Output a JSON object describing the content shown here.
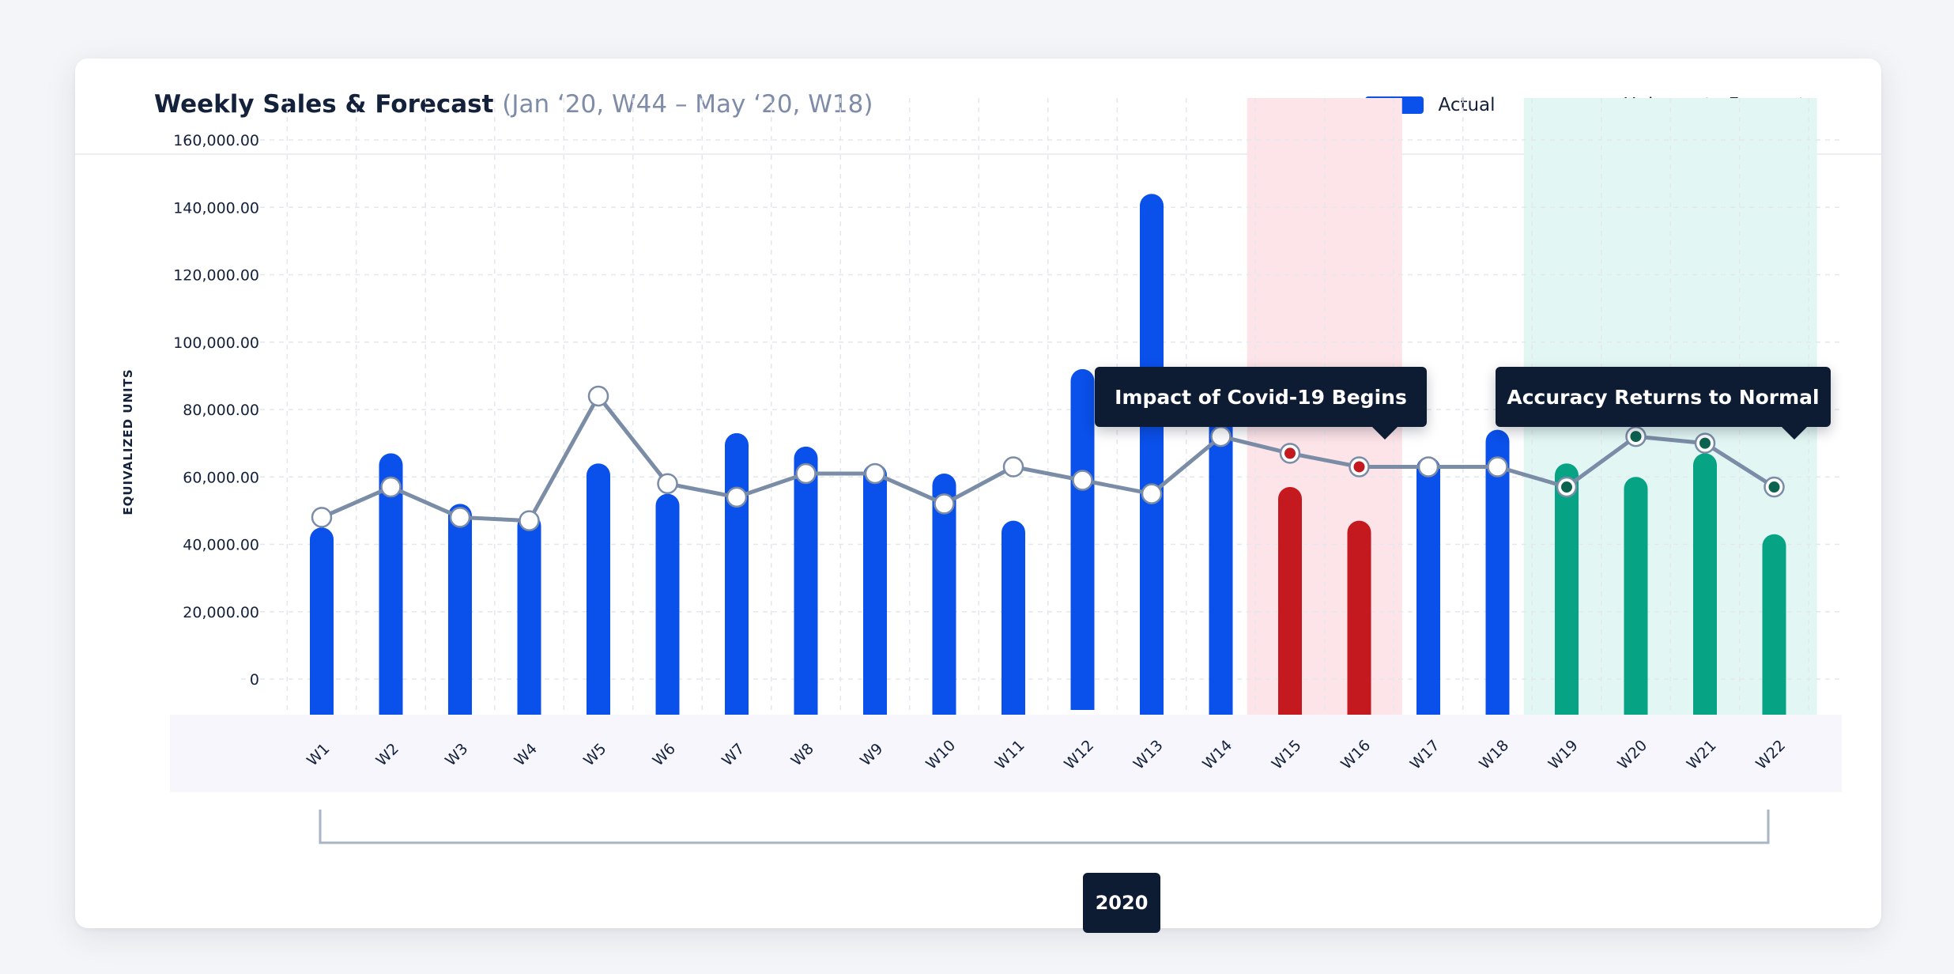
{
  "header": {
    "title": "Weekly Sales & Forecast",
    "subtitle": "(Jan ‘20, W44 – May ‘20, W18)"
  },
  "legend": {
    "actual": "Actual",
    "forecast": "Unioncrate Forecast"
  },
  "callouts": {
    "covid": "Impact of Covid-19 Begins",
    "normal": "Accuracy Returns to Normal"
  },
  "year_label": "2020",
  "colors": {
    "actual": "#0a50ea",
    "covid": "#c4191f",
    "normal": "#07a385",
    "forecast_line": "#7a8ca6",
    "covid_band": "#fde4e8",
    "normal_band": "#e2f7f4"
  },
  "chart_data": {
    "type": "bar",
    "categories": [
      "W1",
      "W2",
      "W3",
      "W4",
      "W5",
      "W6",
      "W7",
      "W8",
      "W9",
      "W10",
      "W11",
      "W12",
      "W13",
      "W14",
      "W15",
      "W16",
      "W17",
      "W18",
      "W19",
      "W20",
      "W21",
      "W22"
    ],
    "ylabel": "EQUIVALIZED UNITS",
    "ylim": [
      0,
      160000
    ],
    "yticks": [
      "0",
      "20,000.00",
      "40,000.00",
      "60,000.00",
      "80,000.00",
      "100,000.00",
      "120,000.00",
      "140,000.00",
      "160,000.00"
    ],
    "grid": true,
    "legend_position": "top-right",
    "highlight_ranges": [
      {
        "label": "Impact of Covid-19 Begins",
        "from": "W15",
        "to": "W16"
      },
      {
        "label": "Accuracy Returns to Normal",
        "from": "W19",
        "to": "W22"
      }
    ],
    "series": [
      {
        "name": "Actual",
        "type": "bar",
        "values": [
          45000,
          67000,
          52000,
          49000,
          64000,
          55000,
          73000,
          69000,
          64000,
          61000,
          47000,
          92000,
          144000,
          80000,
          57000,
          47000,
          66000,
          74000,
          64000,
          60000,
          67000,
          43000
        ]
      },
      {
        "name": "Unioncrate Forecast",
        "type": "line",
        "values": [
          48000,
          57000,
          48000,
          47000,
          84000,
          58000,
          54000,
          61000,
          61000,
          52000,
          63000,
          59000,
          55000,
          72000,
          67000,
          63000,
          63000,
          63000,
          57000,
          72000,
          70000,
          57000
        ]
      }
    ]
  }
}
